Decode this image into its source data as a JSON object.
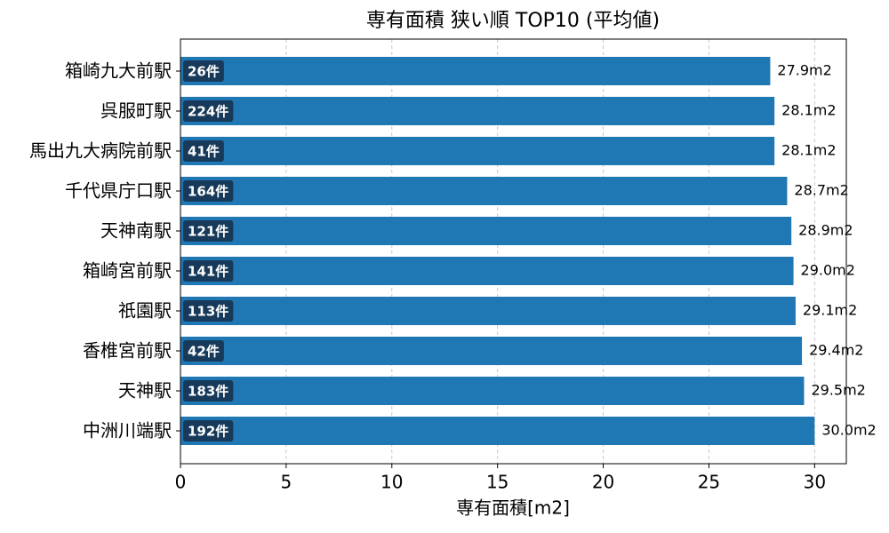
{
  "chart_data": {
    "type": "barh",
    "title": "専有面積 狭い順 TOP10 (平均値)",
    "x_label": "専有面積[m2]",
    "categories": [
      "箱崎九大前駅",
      "呉服町駅",
      "馬出九大病院前駅",
      "千代県庁口駅",
      "天神南駅",
      "箱崎宮前駅",
      "祇園駅",
      "香椎宮前駅",
      "天神駅",
      "中洲川端駅"
    ],
    "values": [
      27.9,
      28.1,
      28.1,
      28.7,
      28.9,
      29.0,
      29.1,
      29.4,
      29.5,
      30.0
    ],
    "value_labels": [
      "27.9m2",
      "28.1m2",
      "28.1m2",
      "28.7m2",
      "28.9m2",
      "29.0m2",
      "29.1m2",
      "29.4m2",
      "29.5m2",
      "30.0m2"
    ],
    "counts": [
      26,
      224,
      41,
      164,
      121,
      141,
      113,
      42,
      183,
      192
    ],
    "count_labels": [
      "26件",
      "224件",
      "41件",
      "164件",
      "121件",
      "141件",
      "113件",
      "42件",
      "183件",
      "192件"
    ],
    "color": "#1f77b4",
    "badge_color": "#173a5a",
    "xlim": [
      0,
      31.5
    ],
    "xticks": [
      0,
      5,
      10,
      15,
      20,
      25,
      30
    ],
    "grid": true
  }
}
